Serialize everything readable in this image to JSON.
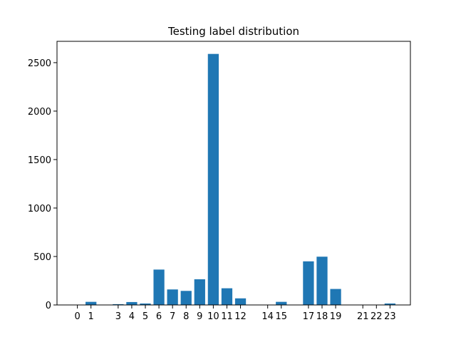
{
  "chart_data": {
    "type": "bar",
    "title": "Testing label distribution",
    "xlabel": "",
    "ylabel": "",
    "categories": [
      "0",
      "1",
      "3",
      "4",
      "5",
      "6",
      "7",
      "8",
      "9",
      "10",
      "11",
      "12",
      "14",
      "15",
      "17",
      "18",
      "19",
      "21",
      "22",
      "23"
    ],
    "x": [
      0,
      1,
      3,
      4,
      5,
      6,
      7,
      8,
      9,
      10,
      11,
      12,
      14,
      15,
      17,
      18,
      19,
      21,
      22,
      23
    ],
    "values": [
      2,
      32,
      8,
      30,
      15,
      365,
      160,
      145,
      265,
      2590,
      172,
      68,
      2,
      32,
      450,
      498,
      165,
      1,
      2,
      15
    ],
    "xlim": [
      -1.5,
      24.5
    ],
    "ylim": [
      0,
      2720
    ],
    "yticks": [
      0,
      500,
      1000,
      1500,
      2000,
      2500
    ],
    "bar_color": "#1f77b4",
    "grid": false,
    "legend": "none"
  }
}
